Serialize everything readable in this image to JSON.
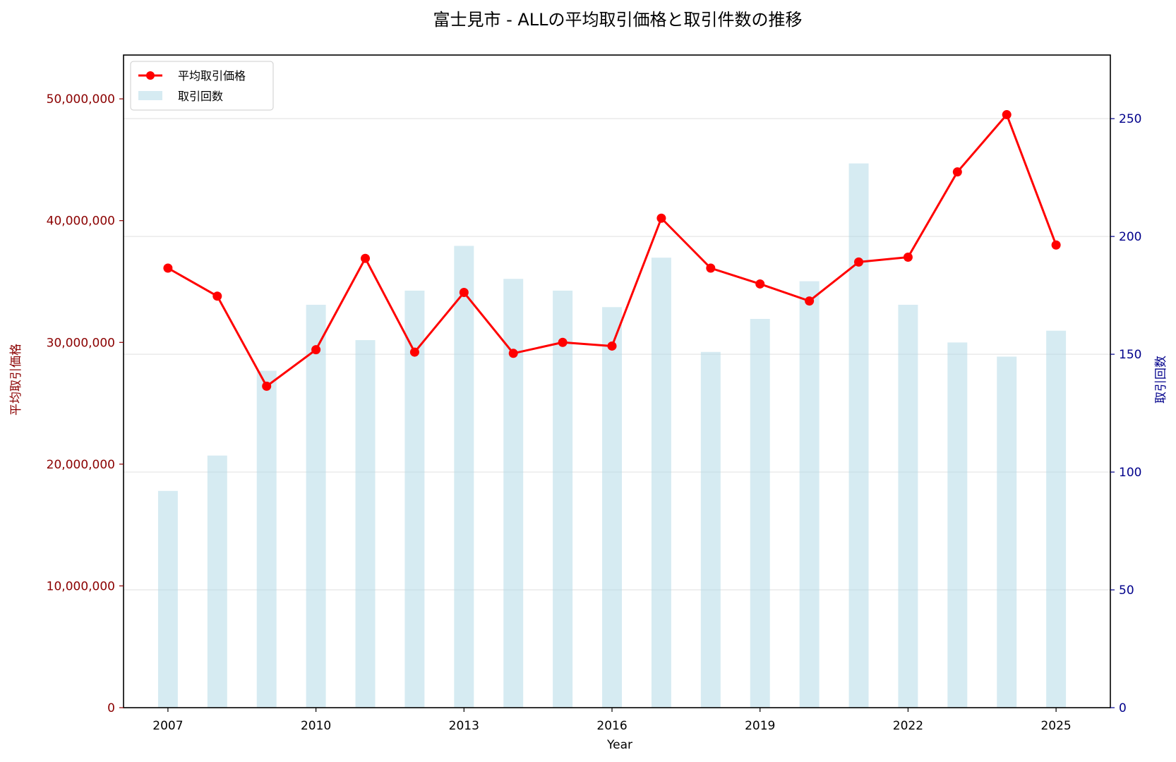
{
  "chart_data": {
    "type": "bar+line",
    "title": "富士見市 - ALLの平均取引価格と取引件数の推移",
    "xlabel": "Year",
    "ylabel_left": "平均取引価格",
    "ylabel_right": "取引回数",
    "x": [
      2007,
      2008,
      2009,
      2010,
      2011,
      2012,
      2013,
      2014,
      2015,
      2016,
      2017,
      2018,
      2019,
      2020,
      2021,
      2022,
      2023,
      2024,
      2025
    ],
    "x_ticks": [
      "2007",
      "2010",
      "2013",
      "2016",
      "2019",
      "2022",
      "2025"
    ],
    "xlim": [
      2006.1,
      2026.1
    ],
    "series": [
      {
        "name": "平均取引価格",
        "axis": "left",
        "kind": "line",
        "color": "#ff0000",
        "values": [
          36100000,
          33800000,
          26400000,
          29400000,
          36900000,
          29200000,
          34100000,
          29100000,
          30000000,
          29700000,
          40200000,
          36100000,
          34800000,
          33400000,
          36600000,
          37000000,
          44000000,
          48700000,
          38000000
        ]
      },
      {
        "name": "取引回数",
        "axis": "right",
        "kind": "bar",
        "color": "#add8e6",
        "values": [
          92,
          107,
          143,
          171,
          156,
          177,
          196,
          182,
          177,
          170,
          191,
          151,
          165,
          181,
          231,
          171,
          155,
          149,
          160
        ]
      }
    ],
    "y_left": {
      "lim": [
        0,
        53600000
      ],
      "ticks": [
        0,
        10000000,
        20000000,
        30000000,
        40000000,
        50000000
      ],
      "tick_labels": [
        "0",
        "10,000,000",
        "20,000,000",
        "30,000,000",
        "40,000,000",
        "50,000,000"
      ],
      "color": "#8b0000"
    },
    "y_right": {
      "lim": [
        0,
        277
      ],
      "ticks": [
        0,
        50,
        100,
        150,
        200,
        250
      ],
      "tick_labels": [
        "0",
        "50",
        "100",
        "150",
        "200",
        "250"
      ],
      "color": "#00008b"
    },
    "grid": "horizontal",
    "legend_position": "top-left"
  }
}
